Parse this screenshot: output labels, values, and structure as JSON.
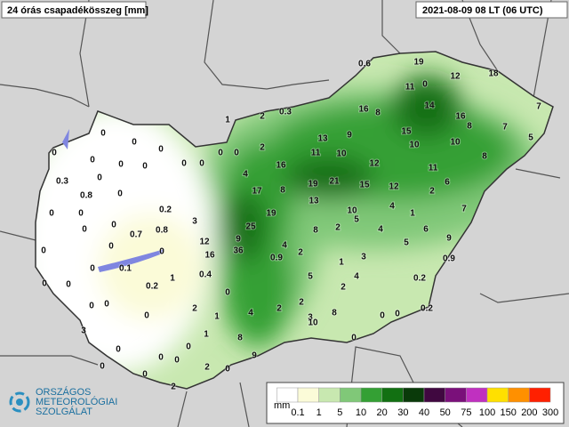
{
  "header": {
    "title": "24 órás csapadékösszeg [mm]",
    "time": "2021-08-09 08 LT (06 UTC)"
  },
  "logo": {
    "lines": [
      "ORSZÁGOS",
      "METEOROLÓGIAI",
      "SZOLGÁLAT"
    ]
  },
  "legend": {
    "unit": "mm",
    "labels": [
      "0.1",
      "1",
      "5",
      "10",
      "20",
      "30",
      "40",
      "50",
      "75",
      "100",
      "150",
      "200",
      "300"
    ],
    "colors": [
      "#ffffff",
      "#fbfbd8",
      "#c8e8b0",
      "#80c878",
      "#34a034",
      "#127012",
      "#0a3a0a",
      "#400840",
      "#7a107a",
      "#c030c0",
      "#ffe000",
      "#ff9000",
      "#ff2000"
    ]
  },
  "stations": [
    "0.6",
    "19",
    "18",
    "12",
    "11",
    "0",
    "7",
    "14",
    "16",
    "8",
    "16",
    "8",
    "7",
    "5",
    "15",
    "10",
    "10",
    "8",
    "11",
    "6",
    "2",
    "12",
    "15",
    "21",
    "19",
    "12",
    "13",
    "9",
    "11",
    "10",
    "0.3",
    "2",
    "1",
    "2",
    "16",
    "0",
    "0",
    "0",
    "0",
    "4",
    "17",
    "8",
    "13",
    "19",
    "10",
    "5",
    "4",
    "1",
    "7",
    "6",
    "9",
    "5",
    "0.9",
    "2",
    "8",
    "4",
    "25",
    "9",
    "36",
    "12",
    "16",
    "4",
    "0.9",
    "2",
    "3",
    "1",
    "4",
    "5",
    "2",
    "0.2",
    "2",
    "2",
    "3",
    "8",
    "10",
    "4",
    "0.4",
    "0",
    "1",
    "8",
    "0",
    "9",
    "0",
    "0",
    "0.2",
    "0",
    "3",
    "0.2",
    "0.8",
    "0.7",
    "0",
    "0.1",
    "0.2",
    "1",
    "2",
    "1",
    "2",
    "0",
    "0",
    "0",
    "0",
    "0",
    "2",
    "0",
    "0",
    "0",
    "0",
    "0",
    "0.3",
    "0.8",
    "0",
    "0",
    "0",
    "0",
    "0",
    "0",
    "0",
    "0",
    "0",
    "0",
    "0",
    "0",
    "0",
    "0",
    "0",
    "0",
    "0",
    "3"
  ]
}
